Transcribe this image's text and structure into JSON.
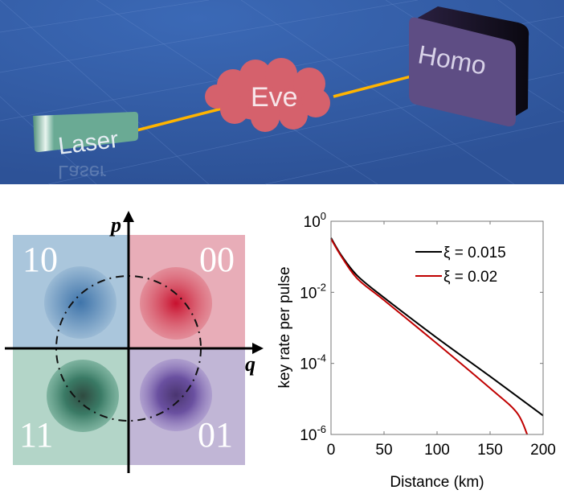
{
  "scheme": {
    "source_label": "Laser",
    "eavesdropper_label": "Eve",
    "detector_label": "Homo",
    "colors": {
      "background": "#3560a8",
      "laser": "#6aaa94",
      "eve": "#d5616c",
      "homo": "#5e4d84",
      "beam": "#ffb400"
    }
  },
  "constellation": {
    "p_axis_label": "p",
    "q_axis_label": "q",
    "quadrants": [
      {
        "bits": "10",
        "color": "#aac6dc",
        "state_color": "#3f74aa"
      },
      {
        "bits": "00",
        "color": "#e8adb8",
        "state_color": "#c8102e"
      },
      {
        "bits": "11",
        "color": "#b3d5c8",
        "state_color": "#2f6a55"
      },
      {
        "bits": "01",
        "color": "#c1b6d6",
        "state_color": "#5a3f8a"
      }
    ]
  },
  "chart_data": {
    "type": "line",
    "xlabel": "Distance (km)",
    "ylabel": "key rate per pulse",
    "xlim": [
      0,
      200
    ],
    "ylim": [
      1e-06,
      1
    ],
    "yscale": "log",
    "x_ticks": [
      "0",
      "50",
      "100",
      "150",
      "200"
    ],
    "y_ticks": [
      {
        "base": "10",
        "exp": "0"
      },
      {
        "base": "10",
        "exp": "-2"
      },
      {
        "base": "10",
        "exp": "-4"
      },
      {
        "base": "10",
        "exp": "-6"
      }
    ],
    "grid": false,
    "legend_position": "top-right",
    "series": [
      {
        "name": "ξ = 0.015",
        "color": "#000000",
        "x": [
          0,
          10,
          25,
          50,
          100,
          150,
          200
        ],
        "y": [
          0.34,
          0.107,
          0.029,
          0.0071,
          0.00052,
          4.3e-05,
          3.4e-06
        ]
      },
      {
        "name": "ξ = 0.02",
        "color": "#c00000",
        "x": [
          0,
          10,
          25,
          50,
          100,
          150,
          175,
          185
        ],
        "y": [
          0.32,
          0.1,
          0.024,
          0.006,
          0.00036,
          2e-05,
          4.2e-06,
          1e-06
        ]
      }
    ]
  }
}
